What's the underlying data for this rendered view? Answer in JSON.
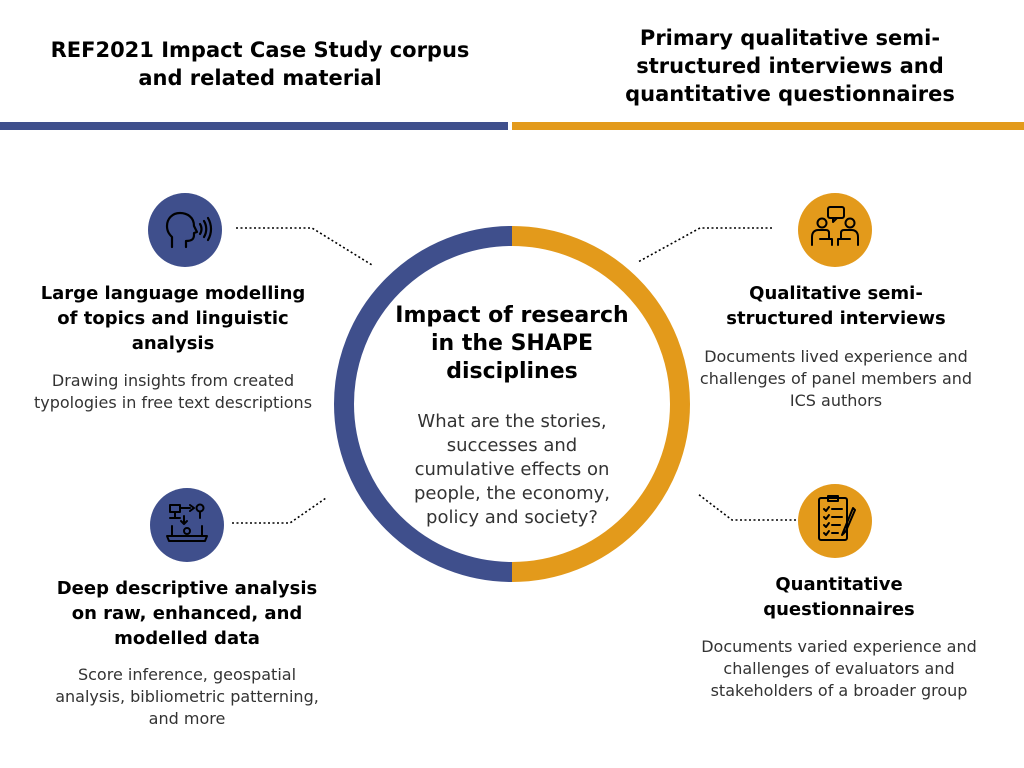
{
  "header": {
    "left_title": "REF2021 Impact Case Study corpus and related material",
    "right_title": "Primary qualitative semi-structured interviews and quantitative questionnaires"
  },
  "center": {
    "title": "Impact of research in the SHAPE disciplines",
    "question": "What are the stories, successes and cumulative effects on people, the economy, policy and society?"
  },
  "nodes": [
    {
      "title": "Large language modelling of topics and linguistic analysis",
      "description": "Drawing insights from created typologies in free text descriptions",
      "icon": "speaking-head-icon"
    },
    {
      "title": "Deep descriptive analysis on raw, enhanced, and modelled data",
      "description": "Score inference, geospatial analysis, bibliometric patterning, and more",
      "icon": "laptop-flowchart-icon"
    },
    {
      "title": "Qualitative semi-structured interviews",
      "description": "Documents lived experience and challenges of panel members and ICS authors",
      "icon": "interview-people-icon"
    },
    {
      "title": "Quantitative questionnaires",
      "description": "Documents varied experience and challenges of evaluators and stakeholders of a broader group",
      "icon": "questionnaire-checklist-icon"
    }
  ],
  "colors": {
    "blue": "#3f4f8c",
    "orange": "#e39a1b"
  }
}
